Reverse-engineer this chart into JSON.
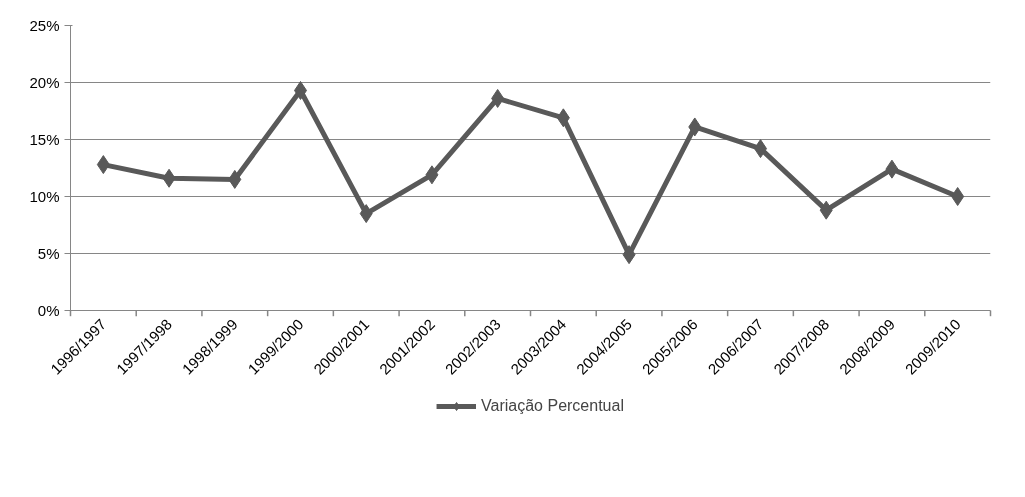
{
  "chart_data": {
    "type": "line",
    "categories": [
      "1996/1997",
      "1997/1998",
      "1998/1999",
      "1999/2000",
      "2000/2001",
      "2001/2002",
      "2002/2003",
      "2003/2004",
      "2004/2005",
      "2005/2006",
      "2006/2007",
      "2007/2008",
      "2008/2009",
      "2009/2010"
    ],
    "series": [
      {
        "name": "Variação Percentual",
        "color": "#595959",
        "values": [
          12.8,
          11.6,
          11.5,
          19.3,
          8.5,
          11.9,
          18.6,
          16.9,
          4.9,
          16.1,
          14.2,
          8.8,
          12.4,
          10.0
        ]
      }
    ],
    "ylim": [
      0,
      25
    ],
    "yticks": [
      {
        "value": 0,
        "label": "0%"
      },
      {
        "value": 5,
        "label": "5%"
      },
      {
        "value": 10,
        "label": "10%"
      },
      {
        "value": 15,
        "label": "15%"
      },
      {
        "value": 20,
        "label": "20%"
      },
      {
        "value": 25,
        "label": "25%"
      }
    ],
    "grid": "y",
    "legend": "bottom",
    "marker": "diamond",
    "line_style": "solid"
  }
}
